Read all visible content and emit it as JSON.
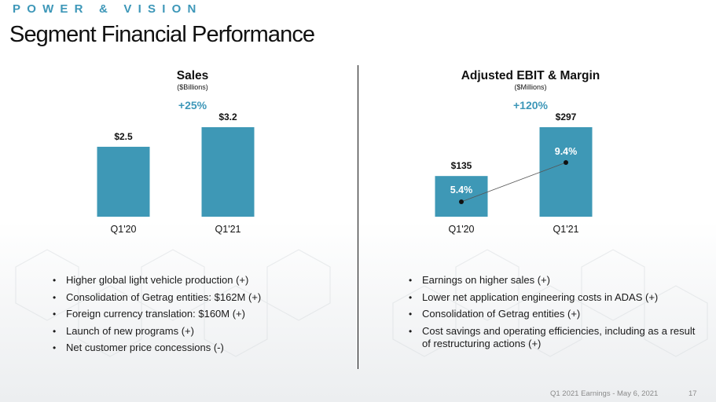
{
  "header": {
    "brand": "POWER & VISION",
    "title": "Segment Financial Performance"
  },
  "colors": {
    "bar": "#3e98b6",
    "accent": "#3d97b8"
  },
  "chart_data": [
    {
      "type": "bar",
      "title": "Sales",
      "subtitle": "($Billions)",
      "growth": "+25%",
      "categories": [
        "Q1'20",
        "Q1'21"
      ],
      "values": [
        2.5,
        3.2
      ],
      "value_labels": [
        "$2.5",
        "$3.2"
      ],
      "ylim": [
        0,
        3.2
      ]
    },
    {
      "type": "bar",
      "title": "Adjusted EBIT & Margin",
      "subtitle": "($Millions)",
      "growth": "+120%",
      "categories": [
        "Q1'20",
        "Q1'21"
      ],
      "values": [
        135,
        297
      ],
      "value_labels": [
        "$135",
        "$297"
      ],
      "ylim": [
        0,
        297
      ],
      "margin_series": {
        "values": [
          5.4,
          9.4
        ],
        "labels": [
          "5.4%",
          "9.4%"
        ]
      }
    }
  ],
  "left_bullets": [
    "Higher global light vehicle production (+)",
    "Consolidation of Getrag entities: $162M (+)",
    "Foreign currency translation: $160M (+)",
    "Launch of new programs (+)",
    "Net customer price concessions (-)"
  ],
  "right_bullets": [
    "Earnings on higher sales (+)",
    "Lower net application engineering costs in ADAS (+)",
    "Consolidation of Getrag entities (+)",
    "Cost savings and operating efficiencies, including as a result of restructuring actions (+)"
  ],
  "footer": {
    "text": "Q1 2021 Earnings - May 6, 2021",
    "page": "17"
  }
}
